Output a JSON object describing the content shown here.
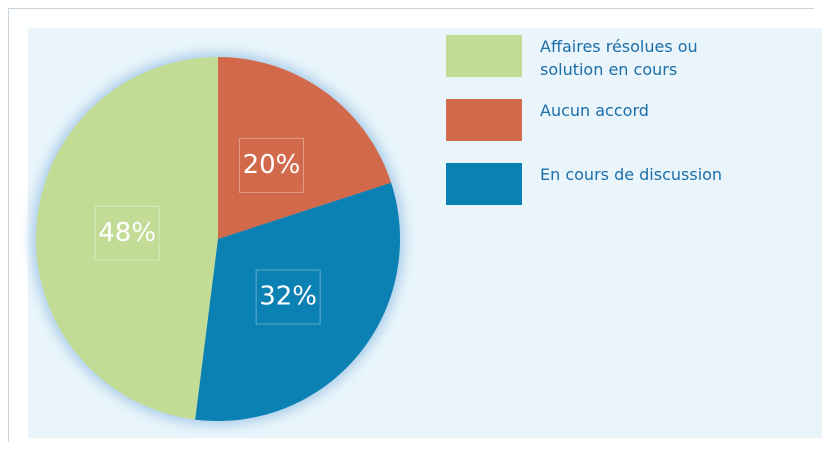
{
  "chart_data": {
    "type": "pie",
    "categories": [
      "Affaires résolues ou solution en cours",
      "Aucun accord",
      "En cours de discussion"
    ],
    "values": [
      48,
      20,
      32
    ],
    "value_labels": [
      "48%",
      "20%",
      "32%"
    ],
    "colors": [
      "#c2dc96",
      "#d2694b",
      "#0a80b3"
    ]
  }
}
